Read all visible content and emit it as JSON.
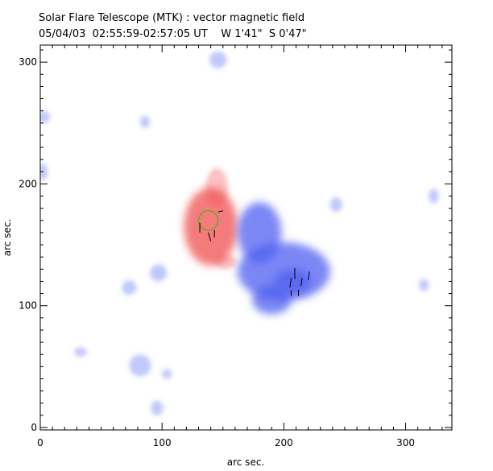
{
  "header": {
    "title": "Solar Flare Telescope (MTK) : vector magnetic field",
    "subtitle": "05/04/03  02:55:59-02:57:05 UT    W 1'41\"  S 0'47\""
  },
  "chart_data": {
    "type": "heatmap",
    "title": "Solar Flare Telescope (MTK) : vector magnetic field",
    "subtitle": "05/04/03  02:55:59-02:57:05 UT    W 1'41\"  S 0'47\"",
    "xlabel": "arc sec.",
    "ylabel": "arc sec.",
    "xlim": [
      0,
      338
    ],
    "ylim": [
      -2,
      314
    ],
    "x_ticks": [
      0,
      100,
      200,
      300
    ],
    "y_ticks": [
      0,
      100,
      200,
      300
    ],
    "grid": false,
    "colors": {
      "positive": "#f05050",
      "negative": "#5060f0",
      "contour": "#66aa22",
      "vector": "#000000",
      "axis": "#000000"
    },
    "regions": [
      {
        "polarity": "positive",
        "name": "positive-polarity-region",
        "cx": 140,
        "cy": 165,
        "rx": 22,
        "ry": 32
      },
      {
        "polarity": "positive",
        "name": "positive-polarity-tongue",
        "cx": 145,
        "cy": 197,
        "rx": 9,
        "ry": 16
      },
      {
        "polarity": "positive",
        "name": "positive-polarity-lobe",
        "cx": 152,
        "cy": 136,
        "rx": 9,
        "ry": 6
      },
      {
        "polarity": "negative",
        "name": "negative-polarity-region",
        "cx": 200,
        "cy": 128,
        "rx": 38,
        "ry": 24
      },
      {
        "polarity": "negative",
        "name": "negative-polarity-upper",
        "cx": 180,
        "cy": 160,
        "rx": 18,
        "ry": 25
      },
      {
        "polarity": "negative",
        "name": "negative-polarity-lower",
        "cx": 190,
        "cy": 105,
        "rx": 16,
        "ry": 12
      },
      {
        "polarity": "negative",
        "name": "negative-polarity-core",
        "cx": 207,
        "cy": 120,
        "rx": 15,
        "ry": 10
      },
      {
        "polarity": "negative",
        "name": "negative-patch-1",
        "cx": 146,
        "cy": 302,
        "rx": 7,
        "ry": 7
      },
      {
        "polarity": "negative",
        "name": "negative-patch-2",
        "cx": 86,
        "cy": 251,
        "rx": 4,
        "ry": 5
      },
      {
        "polarity": "negative",
        "name": "negative-patch-3",
        "cx": 3,
        "cy": 255,
        "rx": 5,
        "ry": 5
      },
      {
        "polarity": "negative",
        "name": "negative-patch-4",
        "cx": 2,
        "cy": 210,
        "rx": 4,
        "ry": 7
      },
      {
        "polarity": "negative",
        "name": "negative-patch-5",
        "cx": 243,
        "cy": 183,
        "rx": 5,
        "ry": 6
      },
      {
        "polarity": "negative",
        "name": "negative-patch-6",
        "cx": 97,
        "cy": 127,
        "rx": 7,
        "ry": 7
      },
      {
        "polarity": "negative",
        "name": "negative-patch-7",
        "cx": 73,
        "cy": 115,
        "rx": 6,
        "ry": 6
      },
      {
        "polarity": "negative",
        "name": "negative-patch-8",
        "cx": 82,
        "cy": 51,
        "rx": 9,
        "ry": 9
      },
      {
        "polarity": "negative",
        "name": "negative-patch-9",
        "cx": 104,
        "cy": 44,
        "rx": 4,
        "ry": 4
      },
      {
        "polarity": "negative",
        "name": "negative-patch-10",
        "cx": 96,
        "cy": 16,
        "rx": 5,
        "ry": 6
      },
      {
        "polarity": "negative",
        "name": "negative-patch-11",
        "cx": 315,
        "cy": 117,
        "rx": 4,
        "ry": 5
      },
      {
        "polarity": "negative",
        "name": "negative-patch-12",
        "cx": 323,
        "cy": 190,
        "rx": 4,
        "ry": 6
      },
      {
        "polarity": "negative",
        "name": "negative-patch-13",
        "cx": 33,
        "cy": 62,
        "rx": 5,
        "ry": 4
      }
    ],
    "contours": [
      {
        "cx": 138,
        "cy": 170,
        "rx": 8,
        "ry": 8
      }
    ],
    "vectors": [
      {
        "x": 131,
        "y": 168,
        "dx": 0,
        "dy": -8
      },
      {
        "x": 138,
        "y": 160,
        "dx": 2,
        "dy": -7
      },
      {
        "x": 143,
        "y": 162,
        "dx": 0,
        "dy": -6
      },
      {
        "x": 150,
        "y": 178,
        "dx": -4,
        "dy": -1
      },
      {
        "x": 209,
        "y": 122,
        "dx": 0,
        "dy": 9
      },
      {
        "x": 205,
        "y": 115,
        "dx": 1,
        "dy": 8
      },
      {
        "x": 214,
        "y": 116,
        "dx": 1,
        "dy": 7
      },
      {
        "x": 220,
        "y": 121,
        "dx": 1,
        "dy": 7
      },
      {
        "x": 206,
        "y": 108,
        "dx": 0,
        "dy": 5
      },
      {
        "x": 212,
        "y": 108,
        "dx": 0,
        "dy": 5
      }
    ]
  }
}
